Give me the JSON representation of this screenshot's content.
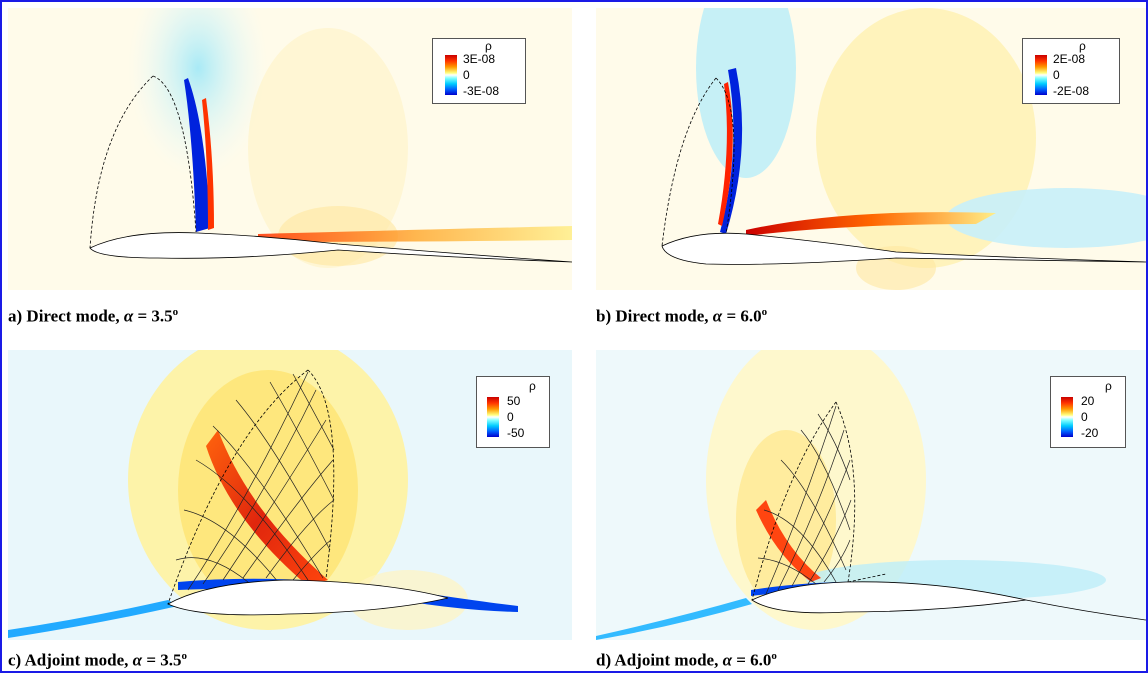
{
  "panels": [
    {
      "id": "a",
      "caption_prefix": "a) Direct mode,",
      "alpha_symbol": "α",
      "caption_value": " = 3.5",
      "degree": "o",
      "legend": {
        "variable": "ρ",
        "max": "3E-08",
        "mid": "0",
        "min": "-3E-08"
      }
    },
    {
      "id": "b",
      "caption_prefix": "b) Direct mode,",
      "alpha_symbol": "α",
      "caption_value": " = 6.0",
      "degree": "o",
      "legend": {
        "variable": "ρ",
        "max": "2E-08",
        "mid": "0",
        "min": "-2E-08"
      }
    },
    {
      "id": "c",
      "caption_prefix": "c) Adjoint mode,",
      "alpha_symbol": "α",
      "caption_value": " = 3.5",
      "degree": "o",
      "legend": {
        "variable": "ρ",
        "max": "50",
        "mid": "0",
        "min": "-50"
      }
    },
    {
      "id": "d",
      "caption_prefix": "d) Adjoint mode,",
      "alpha_symbol": "α",
      "caption_value": " = 6.0",
      "degree": "o",
      "legend": {
        "variable": "ρ",
        "max": "20",
        "mid": "0",
        "min": "-20"
      }
    }
  ],
  "colors": {
    "frame_border": "#1a1ae6",
    "background_direct": "#fffbea",
    "background_adjoint": "#e9f7fb",
    "positive": "#ff2a00",
    "negative": "#0033ff"
  }
}
